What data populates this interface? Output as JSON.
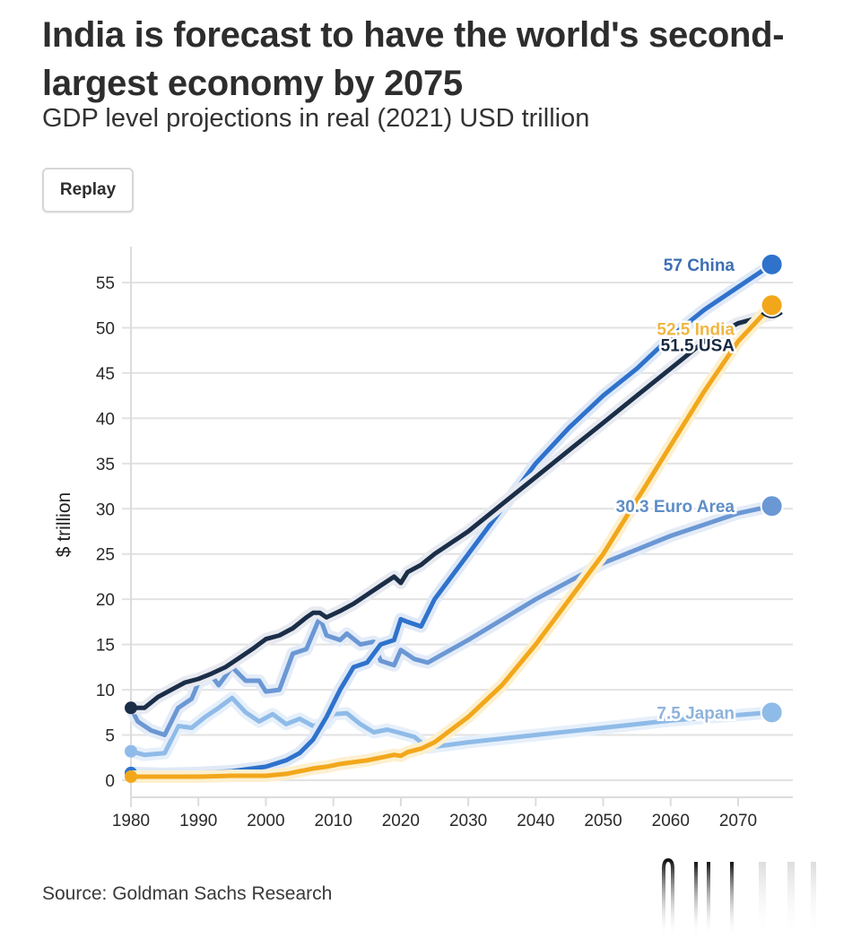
{
  "header": {
    "title": "India is forecast to have the world's second-largest economy by 2075",
    "subtitle": "GDP level projections in real (2021) USD trillion",
    "replay_label": "Replay"
  },
  "footer": {
    "source": "Source: Goldman Sachs Research"
  },
  "chart_data": {
    "type": "line",
    "title": "India is forecast to have the world's second-largest economy by 2075",
    "subtitle": "GDP level projections in real (2021) USD trillion",
    "xlabel": "",
    "ylabel": "$ trillion",
    "xlim": [
      1980,
      2077
    ],
    "ylim": [
      0,
      57
    ],
    "x_ticks": [
      1980,
      1990,
      2000,
      2010,
      2020,
      2030,
      2040,
      2050,
      2060,
      2070
    ],
    "y_ticks": [
      0,
      5,
      10,
      15,
      20,
      25,
      30,
      35,
      40,
      45,
      50,
      55
    ],
    "grid": "horizontal",
    "legend": "end-of-line labels (right)",
    "series": [
      {
        "name": "Japan",
        "end_label": "7.5 Japan",
        "end_value": 7.5,
        "color": "#8fbbe8",
        "x": [
          1980,
          1982,
          1985,
          1987,
          1989,
          1991,
          1993,
          1995,
          1997,
          1999,
          2001,
          2003,
          2005,
          2007,
          2009,
          2010,
          2012,
          2014,
          2016,
          2018,
          2020,
          2022,
          2024,
          2030,
          2040,
          2050,
          2060,
          2070,
          2075
        ],
        "y": [
          3.2,
          2.8,
          3.0,
          6.0,
          5.8,
          7.0,
          8.0,
          9.1,
          7.5,
          6.5,
          7.3,
          6.2,
          6.8,
          6.0,
          6.3,
          7.3,
          7.4,
          6.2,
          5.3,
          5.6,
          5.2,
          4.8,
          3.6,
          4.2,
          5.0,
          5.8,
          6.6,
          7.2,
          7.5
        ]
      },
      {
        "name": "Euro Area",
        "end_label": "30.3 Euro Area",
        "end_value": 30.3,
        "color": "#6b97d4",
        "x": [
          1980,
          1981,
          1983,
          1985,
          1987,
          1989,
          1990,
          1992,
          1993,
          1995,
          1997,
          1999,
          2000,
          2002,
          2004,
          2006,
          2008,
          2009,
          2011,
          2012,
          2014,
          2016,
          2017,
          2019,
          2020,
          2022,
          2024,
          2030,
          2040,
          2050,
          2060,
          2070,
          2075
        ],
        "y": [
          8.0,
          6.5,
          5.5,
          5.0,
          8.0,
          9.0,
          10.8,
          11.5,
          10.5,
          12.5,
          11.0,
          11.0,
          9.8,
          10.0,
          14.0,
          14.5,
          18.0,
          16.0,
          15.5,
          16.2,
          15.0,
          15.3,
          13.2,
          12.7,
          14.4,
          13.4,
          13.0,
          15.5,
          20.0,
          24.0,
          27.0,
          29.5,
          30.3
        ]
      },
      {
        "name": "China",
        "end_label": "57 China",
        "end_value": 57,
        "color": "#2f72cc",
        "x": [
          1980,
          1985,
          1990,
          1995,
          2000,
          2003,
          2005,
          2007,
          2009,
          2011,
          2013,
          2015,
          2017,
          2019,
          2020,
          2021,
          2023,
          2025,
          2030,
          2035,
          2040,
          2045,
          2050,
          2055,
          2060,
          2065,
          2070,
          2075
        ],
        "y": [
          0.8,
          0.7,
          0.8,
          1.0,
          1.5,
          2.2,
          3.0,
          4.5,
          7.0,
          10.0,
          12.5,
          13.0,
          15.0,
          15.5,
          17.8,
          17.5,
          17.0,
          20.0,
          25.0,
          30.0,
          35.0,
          39.0,
          42.5,
          45.5,
          49.0,
          52.0,
          54.5,
          57.0
        ]
      },
      {
        "name": "USA",
        "end_label": "51.5 USA",
        "end_value": 51.5,
        "color": "#1b2e48",
        "x": [
          1980,
          1982,
          1984,
          1986,
          1988,
          1990,
          1992,
          1994,
          1996,
          1998,
          2000,
          2002,
          2004,
          2006,
          2007,
          2008,
          2009,
          2011,
          2013,
          2015,
          2017,
          2019,
          2020,
          2021,
          2023,
          2025,
          2030,
          2035,
          2040,
          2045,
          2050,
          2055,
          2060,
          2065,
          2070,
          2075
        ],
        "y": [
          8.0,
          8.0,
          9.2,
          10.0,
          10.8,
          11.2,
          11.8,
          12.5,
          13.5,
          14.5,
          15.6,
          16.0,
          16.8,
          18.0,
          18.5,
          18.5,
          18.0,
          18.7,
          19.5,
          20.5,
          21.5,
          22.5,
          21.8,
          23.0,
          23.8,
          25.0,
          27.5,
          30.5,
          33.5,
          36.5,
          39.5,
          42.5,
          45.5,
          48.5,
          50.5,
          51.5
        ]
      },
      {
        "name": "India",
        "end_label": "52.5 India",
        "end_value": 52.5,
        "color": "#f2a71b",
        "x": [
          1980,
          1985,
          1990,
          1995,
          2000,
          2003,
          2005,
          2007,
          2009,
          2011,
          2013,
          2015,
          2017,
          2019,
          2020,
          2021,
          2023,
          2025,
          2030,
          2035,
          2040,
          2045,
          2050,
          2055,
          2060,
          2065,
          2070,
          2075
        ],
        "y": [
          0.4,
          0.4,
          0.4,
          0.5,
          0.5,
          0.7,
          1.0,
          1.3,
          1.5,
          1.8,
          2.0,
          2.2,
          2.5,
          2.8,
          2.7,
          3.1,
          3.5,
          4.2,
          7.0,
          10.5,
          15.0,
          20.0,
          25.0,
          31.0,
          37.0,
          43.0,
          48.5,
          52.5
        ]
      }
    ]
  }
}
